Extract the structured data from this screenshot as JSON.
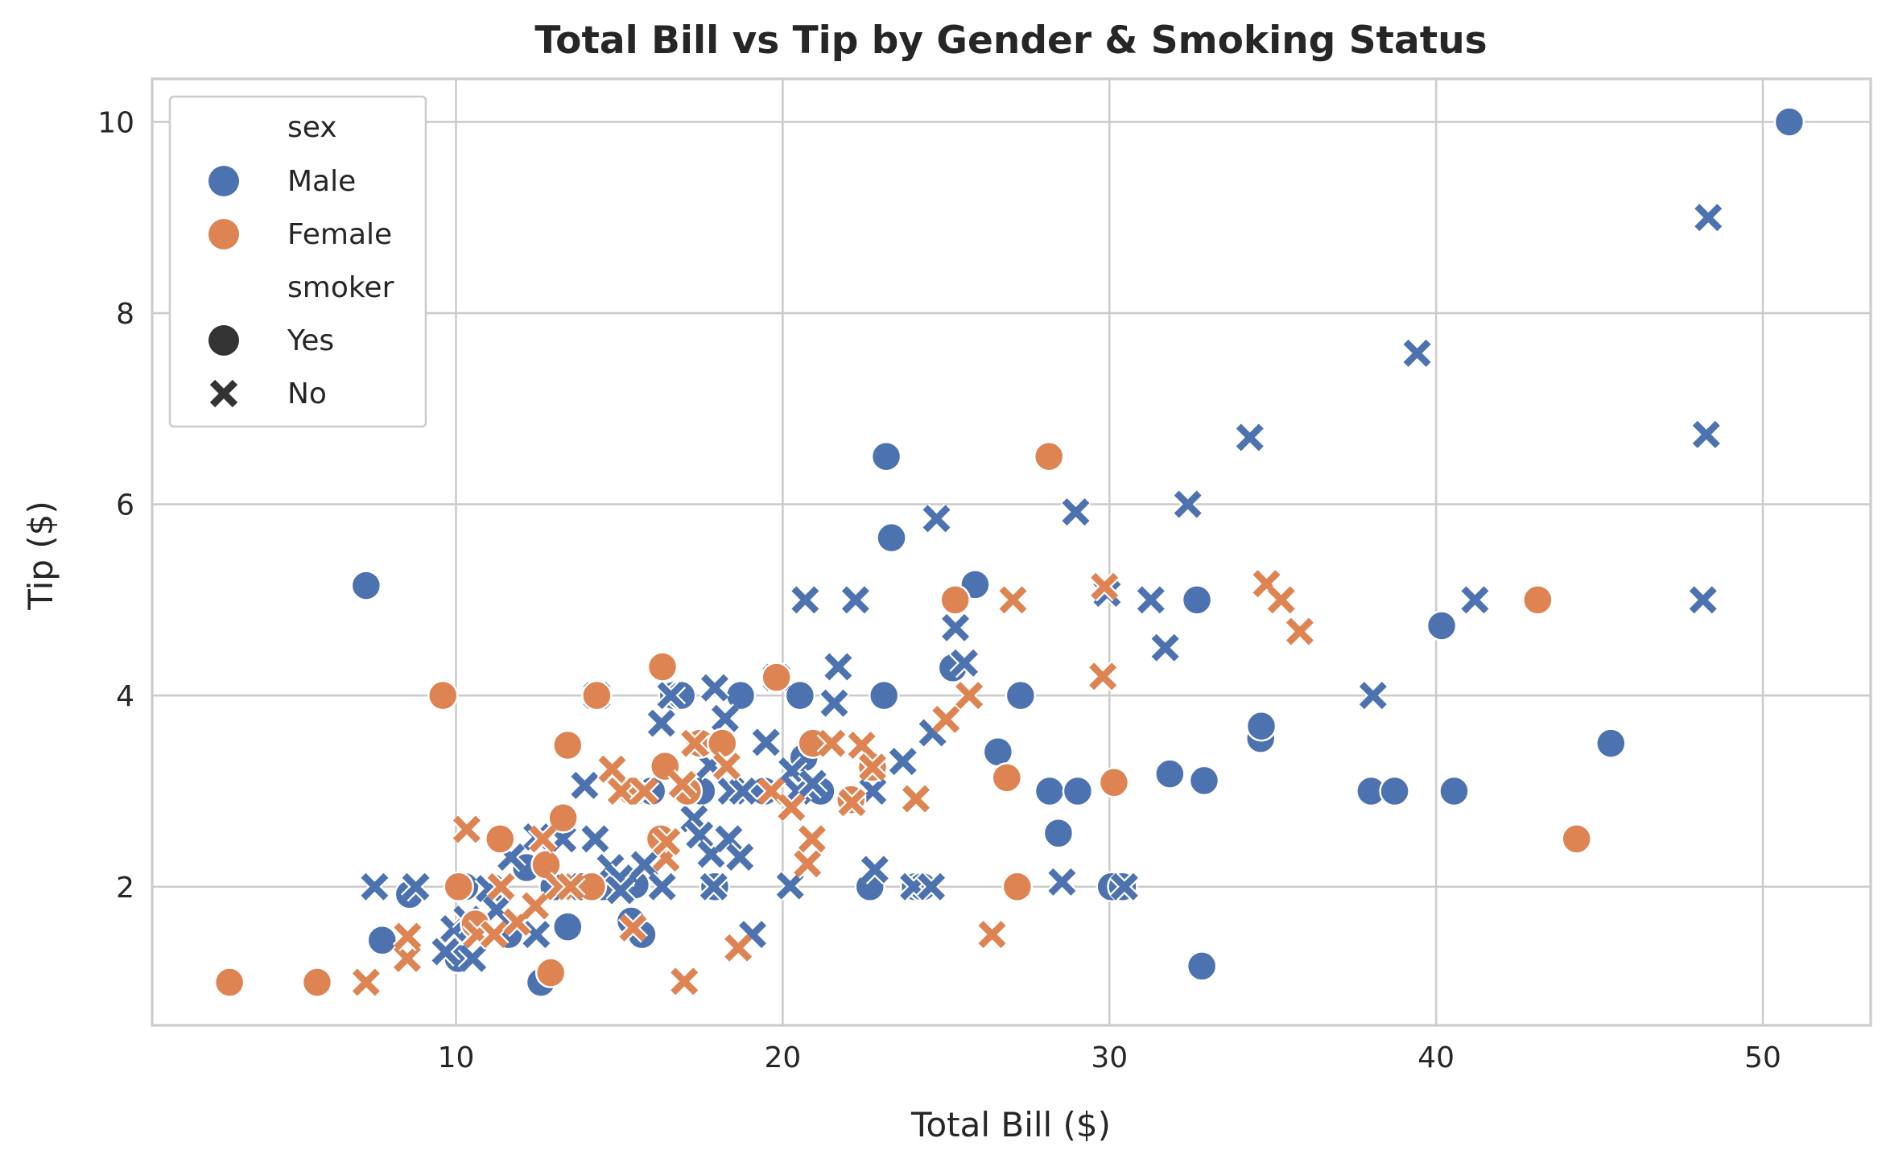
{
  "chart_data": {
    "type": "scatter",
    "title": "Total Bill vs Tip by Gender & Smoking Status",
    "xlabel": "Total Bill ($)",
    "ylabel": "Tip ($)",
    "xlim": [
      0.7,
      53.3
    ],
    "ylim": [
      0.55,
      10.45
    ],
    "xticks": [
      "10",
      "20",
      "30",
      "40",
      "50"
    ],
    "xtick_values": [
      10,
      20,
      30,
      40,
      50
    ],
    "yticks": [
      "2",
      "4",
      "6",
      "8",
      "10"
    ],
    "ytick_values": [
      2,
      4,
      6,
      8,
      10
    ],
    "grid": true,
    "legend_placement": "top-left",
    "legend": {
      "hue_title": "sex",
      "hue_entries": [
        {
          "label": "Male",
          "color": "#4c72b0"
        },
        {
          "label": "Female",
          "color": "#dd8452"
        }
      ],
      "style_title": "smoker",
      "style_entries": [
        {
          "label": "Yes",
          "marker": "circle"
        },
        {
          "label": "No",
          "marker": "x"
        }
      ]
    },
    "colors": {
      "Male": "#4c72b0",
      "Female": "#dd8452"
    },
    "series": [
      {
        "sex": "Male",
        "smoker": "Yes",
        "marker": "circle",
        "points": [
          [
            7.25,
            5.15
          ],
          [
            7.74,
            1.44
          ],
          [
            8.58,
            1.92
          ],
          [
            10.07,
            1.25
          ],
          [
            10.27,
            2.0
          ],
          [
            11.61,
            1.5
          ],
          [
            12.16,
            2.2
          ],
          [
            12.6,
            1.0
          ],
          [
            13.0,
            2.0
          ],
          [
            13.42,
            1.58
          ],
          [
            13.81,
            2.0
          ],
          [
            14.48,
            2.0
          ],
          [
            15.36,
            1.64
          ],
          [
            15.48,
            2.02
          ],
          [
            15.69,
            1.5
          ],
          [
            15.53,
            3.0
          ],
          [
            15.98,
            3.0
          ],
          [
            17.92,
            2.0
          ],
          [
            18.71,
            4.0
          ],
          [
            17.51,
            3.0
          ],
          [
            16.66,
            4.0
          ],
          [
            16.89,
            4.0
          ],
          [
            19.44,
            3.0
          ],
          [
            20.53,
            4.0
          ],
          [
            21.16,
            3.0
          ],
          [
            20.65,
            3.35
          ],
          [
            22.67,
            2.0
          ],
          [
            23.17,
            6.5
          ],
          [
            23.33,
            5.65
          ],
          [
            23.1,
            4.0
          ],
          [
            24.06,
            2.0
          ],
          [
            24.28,
            2.0
          ],
          [
            25.21,
            4.29
          ],
          [
            25.89,
            5.16
          ],
          [
            26.59,
            3.41
          ],
          [
            27.28,
            4.0
          ],
          [
            28.17,
            3.0
          ],
          [
            28.44,
            2.56
          ],
          [
            29.03,
            3.0
          ],
          [
            30.06,
            2.0
          ],
          [
            30.4,
            2.0
          ],
          [
            31.85,
            3.18
          ],
          [
            32.68,
            5.0
          ],
          [
            32.83,
            1.17
          ],
          [
            32.9,
            3.11
          ],
          [
            34.63,
            3.55
          ],
          [
            34.65,
            3.68
          ],
          [
            38.01,
            3.0
          ],
          [
            38.73,
            3.0
          ],
          [
            40.17,
            4.73
          ],
          [
            40.55,
            3.0
          ],
          [
            45.35,
            3.5
          ],
          [
            50.81,
            10.0
          ]
        ]
      },
      {
        "sex": "Male",
        "smoker": "No",
        "marker": "x",
        "points": [
          [
            7.51,
            2.0
          ],
          [
            8.77,
            2.0
          ],
          [
            9.68,
            1.32
          ],
          [
            9.94,
            1.56
          ],
          [
            10.34,
            1.66
          ],
          [
            10.51,
            1.25
          ],
          [
            10.63,
            1.5
          ],
          [
            11.02,
            1.98
          ],
          [
            11.24,
            1.76
          ],
          [
            11.69,
            2.31
          ],
          [
            11.87,
            1.63
          ],
          [
            12.46,
            1.5
          ],
          [
            12.48,
            2.52
          ],
          [
            13.27,
            2.5
          ],
          [
            13.37,
            2.0
          ],
          [
            13.94,
            3.06
          ],
          [
            14.26,
            2.5
          ],
          [
            14.31,
            4.0
          ],
          [
            14.73,
            2.2
          ],
          [
            15.01,
            2.09
          ],
          [
            15.04,
            1.96
          ],
          [
            15.77,
            2.23
          ],
          [
            16.29,
            3.71
          ],
          [
            16.31,
            2.0
          ],
          [
            16.58,
            4.0
          ],
          [
            17.29,
            2.71
          ],
          [
            17.46,
            2.54
          ],
          [
            17.78,
            3.27
          ],
          [
            17.81,
            2.34
          ],
          [
            17.89,
            2.0
          ],
          [
            17.92,
            4.08
          ],
          [
            18.24,
            3.76
          ],
          [
            18.35,
            2.5
          ],
          [
            18.43,
            3.0
          ],
          [
            18.69,
            2.31
          ],
          [
            18.78,
            3.0
          ],
          [
            19.08,
            1.5
          ],
          [
            19.49,
            3.51
          ],
          [
            19.81,
            4.19
          ],
          [
            20.23,
            2.01
          ],
          [
            20.29,
            3.21
          ],
          [
            20.45,
            3.0
          ],
          [
            20.69,
            5.0
          ],
          [
            20.92,
            3.08
          ],
          [
            21.01,
            3.5
          ],
          [
            21.58,
            3.92
          ],
          [
            21.7,
            4.3
          ],
          [
            22.23,
            5.0
          ],
          [
            22.76,
            3.0
          ],
          [
            22.82,
            2.18
          ],
          [
            23.68,
            3.31
          ],
          [
            24.01,
            2.0
          ],
          [
            24.08,
            2.92
          ],
          [
            24.55,
            2.0
          ],
          [
            24.59,
            3.61
          ],
          [
            24.71,
            5.85
          ],
          [
            25.29,
            4.71
          ],
          [
            25.56,
            4.34
          ],
          [
            28.55,
            2.05
          ],
          [
            28.97,
            5.92
          ],
          [
            29.93,
            5.07
          ],
          [
            30.46,
            2.0
          ],
          [
            31.27,
            5.0
          ],
          [
            31.71,
            4.5
          ],
          [
            32.4,
            6.0
          ],
          [
            34.3,
            6.7
          ],
          [
            38.07,
            4.0
          ],
          [
            39.42,
            7.58
          ],
          [
            41.19,
            5.0
          ],
          [
            48.17,
            5.0
          ],
          [
            48.27,
            6.73
          ],
          [
            48.33,
            9.0
          ]
        ]
      },
      {
        "sex": "Female",
        "smoker": "Yes",
        "marker": "circle",
        "points": [
          [
            3.07,
            1.0
          ],
          [
            5.75,
            1.0
          ],
          [
            9.6,
            4.0
          ],
          [
            10.59,
            1.61
          ],
          [
            10.08,
            2.0
          ],
          [
            11.35,
            2.5
          ],
          [
            12.76,
            2.23
          ],
          [
            12.9,
            1.1
          ],
          [
            13.28,
            2.72
          ],
          [
            13.42,
            3.48
          ],
          [
            14.15,
            2.0
          ],
          [
            14.31,
            4.0
          ],
          [
            15.38,
            3.0
          ],
          [
            16.27,
            2.5
          ],
          [
            16.32,
            4.3
          ],
          [
            16.4,
            3.26
          ],
          [
            17.47,
            3.5
          ],
          [
            17.08,
            3.0
          ],
          [
            18.15,
            3.5
          ],
          [
            19.81,
            4.19
          ],
          [
            20.92,
            3.5
          ],
          [
            22.09,
            2.91
          ],
          [
            22.75,
            3.25
          ],
          [
            25.28,
            5.0
          ],
          [
            26.86,
            3.14
          ],
          [
            27.18,
            2.0
          ],
          [
            28.15,
            6.5
          ],
          [
            30.14,
            3.09
          ],
          [
            43.11,
            5.0
          ],
          [
            44.3,
            2.5
          ]
        ]
      },
      {
        "sex": "Female",
        "smoker": "No",
        "marker": "x",
        "points": [
          [
            7.25,
            1.0
          ],
          [
            8.51,
            1.25
          ],
          [
            8.52,
            1.48
          ],
          [
            10.33,
            2.6
          ],
          [
            10.65,
            1.5
          ],
          [
            11.17,
            1.5
          ],
          [
            11.38,
            2.0
          ],
          [
            11.87,
            1.63
          ],
          [
            12.43,
            1.8
          ],
          [
            12.66,
            2.5
          ],
          [
            13.16,
            2.0
          ],
          [
            13.51,
            2.0
          ],
          [
            14.78,
            3.23
          ],
          [
            15.06,
            3.0
          ],
          [
            15.42,
            1.57
          ],
          [
            15.77,
            3.0
          ],
          [
            16.43,
            2.3
          ],
          [
            16.45,
            2.47
          ],
          [
            16.93,
            3.07
          ],
          [
            16.99,
            1.01
          ],
          [
            17.31,
            3.5
          ],
          [
            18.29,
            3.26
          ],
          [
            18.64,
            1.36
          ],
          [
            19.65,
            3.0
          ],
          [
            20.27,
            2.83
          ],
          [
            20.76,
            2.24
          ],
          [
            20.9,
            2.5
          ],
          [
            21.5,
            3.5
          ],
          [
            22.12,
            2.88
          ],
          [
            22.42,
            3.48
          ],
          [
            22.75,
            3.25
          ],
          [
            24.08,
            2.92
          ],
          [
            25.0,
            3.75
          ],
          [
            25.71,
            4.0
          ],
          [
            26.41,
            1.5
          ],
          [
            27.05,
            5.0
          ],
          [
            29.85,
            5.14
          ],
          [
            29.8,
            4.2
          ],
          [
            34.81,
            5.17
          ],
          [
            35.26,
            5.0
          ],
          [
            35.83,
            4.67
          ]
        ]
      }
    ]
  }
}
